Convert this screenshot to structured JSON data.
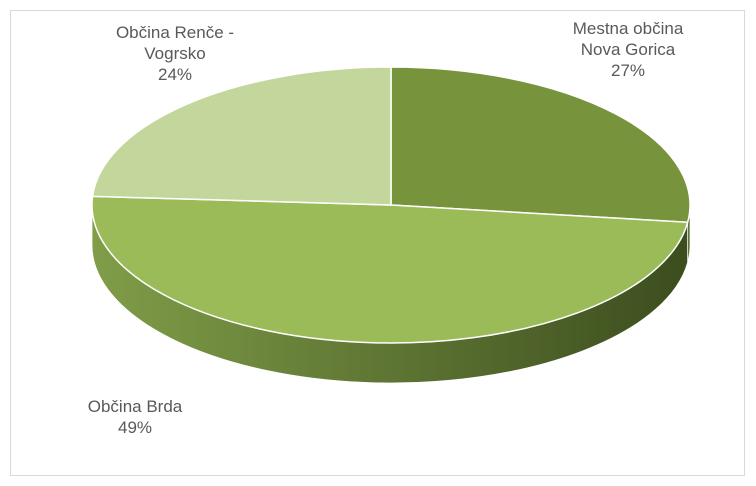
{
  "chart_data": {
    "type": "pie3d",
    "categories": [
      "Mestna občina Nova Gorica",
      "Občina Brda",
      "Občina Renče - Vogrsko"
    ],
    "values": [
      27,
      49,
      24
    ],
    "value_labels": [
      "27%",
      "49%",
      "24%"
    ],
    "colors": [
      "#77933c",
      "#9bbb59",
      "#c3d69b"
    ]
  }
}
